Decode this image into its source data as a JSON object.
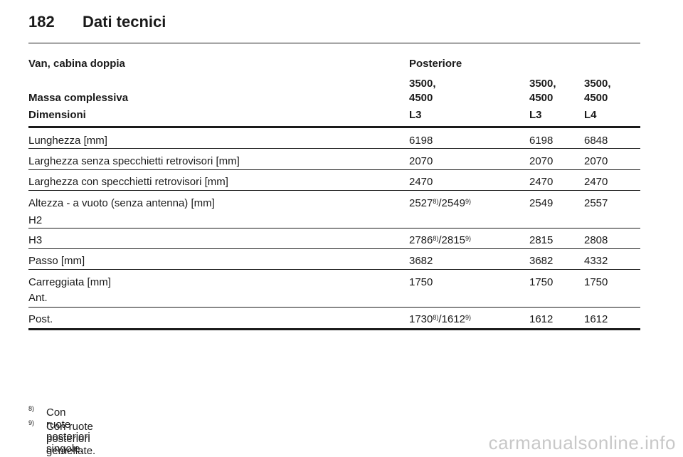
{
  "header": {
    "page_number": "182",
    "title": "Dati tecnici"
  },
  "table": {
    "title_row": {
      "label": "Van, cabina doppia",
      "group": "Posteriore"
    },
    "mass_row": {
      "label": "Massa complessiva",
      "values": [
        "3500, 4500",
        "3500, 4500",
        "3500, 4500"
      ]
    },
    "dim_row": {
      "label": "Dimensioni",
      "values": [
        "L3",
        "L3",
        "L4"
      ]
    },
    "rows": [
      {
        "label": "Lunghezza [mm]",
        "v1": "6198",
        "v2": "6198",
        "v3": "6848"
      },
      {
        "label": "Larghezza senza specchietti retrovisori [mm]",
        "v1": "2070",
        "v2": "2070",
        "v3": "2070"
      },
      {
        "label": "Larghezza con specchietti retrovisori [mm]",
        "v1": "2470",
        "v2": "2470",
        "v3": "2470"
      },
      {
        "label": "Altezza - a vuoto (senza antenna) [mm]",
        "sublabel": "H2",
        "v1a": "2527",
        "v1a_sup": "8)",
        "v1b": "/2549",
        "v1b_sup": "9)",
        "v2": "2549",
        "v3": "2557"
      },
      {
        "label": "H3",
        "v1a": "2786",
        "v1a_sup": "8)",
        "v1b": "/2815",
        "v1b_sup": "9)",
        "v2": "2815",
        "v3": "2808"
      },
      {
        "label": "Passo [mm]",
        "v1": "3682",
        "v2": "3682",
        "v3": "4332"
      },
      {
        "label": "Carreggiata [mm]",
        "sublabel": "Ant.",
        "v1": "1750",
        "v2": "1750",
        "v3": "1750"
      },
      {
        "label": "Post.",
        "v1a": "1730",
        "v1a_sup": "8)",
        "v1b": "/1612",
        "v1b_sup": "9)",
        "v2": "1612",
        "v3": "1612"
      }
    ]
  },
  "footnotes": [
    {
      "mark": "8)",
      "text": "Con ruote posteriori singole."
    },
    {
      "mark": "9)",
      "text": "Con ruote posteriori gemellate."
    }
  ],
  "watermark": "carmanualsonline.info"
}
